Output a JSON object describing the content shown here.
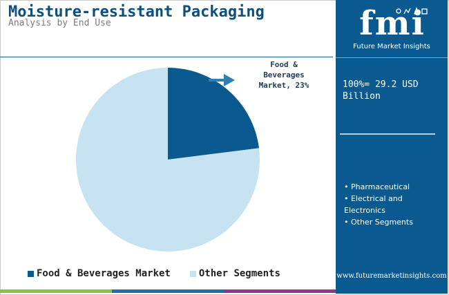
{
  "header": {
    "title": "Moisture-resistant Packaging",
    "subtitle": "Analysis by End Use"
  },
  "chart_data": {
    "type": "pie",
    "slices": [
      {
        "name": "Food & Beverages Market",
        "value": 23,
        "color": "#0a5a90"
      },
      {
        "name": "Other Segments",
        "value": 77,
        "color": "#c7e3f2"
      }
    ],
    "start_angle_deg": 0,
    "direction": "clockwise",
    "callout": {
      "lines": [
        "Food &",
        "Beverages",
        "Market, 23%"
      ],
      "arrow_color": "#2f7fb2"
    },
    "legend": {
      "placement": "bottom",
      "items": [
        {
          "label": "Food & Beverages Market",
          "color": "#0a5a90"
        },
        {
          "label": "Other Segments",
          "color": "#c7e3f2"
        }
      ]
    }
  },
  "panel": {
    "logo_text": "fmi",
    "logo_subtitle": "Future Market Insights",
    "market_size": "100%= 29.2 USD Billion",
    "segments": [
      "• Pharmaceutical",
      "• Electrical and Electronics",
      "• Other Segments"
    ],
    "url": "www.futuremarketinsights.com"
  },
  "colors": {
    "title": "#0a4f7f",
    "subtitle": "#7b7b7b",
    "panel_bg": "#0a5a90",
    "bottom_bar": [
      "#8fbf3f",
      "#1d6fa6",
      "#8a3a8a"
    ]
  }
}
